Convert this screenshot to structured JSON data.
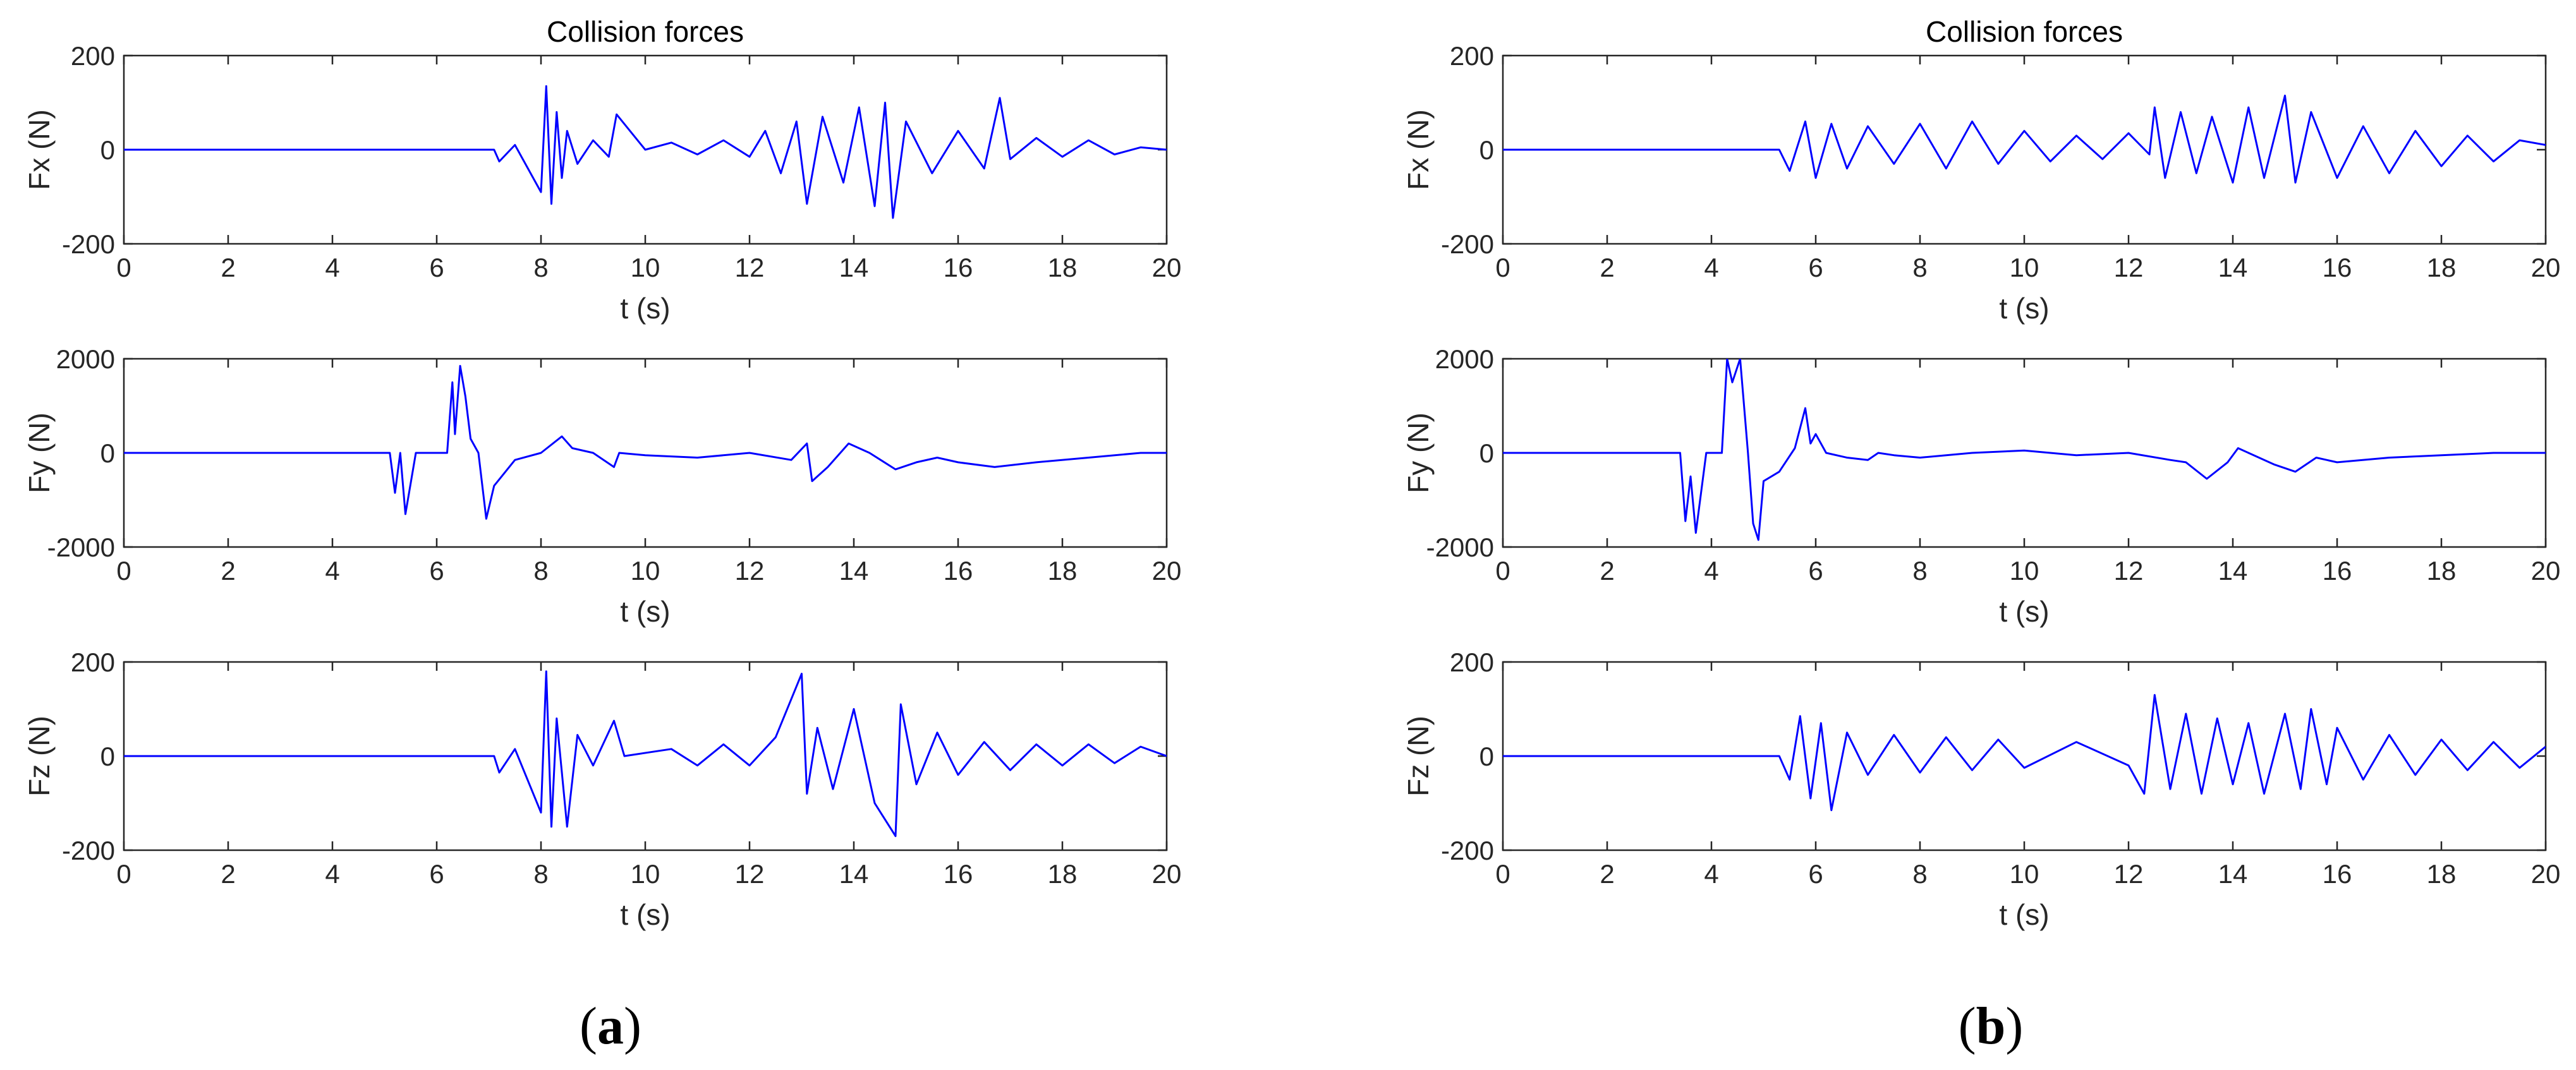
{
  "figure": {
    "panels": [
      {
        "caption_open": "(",
        "caption_letter": "a",
        "caption_close": ")",
        "title": "Collision forces"
      },
      {
        "caption_open": "(",
        "caption_letter": "b",
        "caption_close": ")",
        "title": "Collision forces"
      }
    ]
  },
  "line_color": "#0000ff",
  "chart_data": [
    {
      "type": "line",
      "panel": "a",
      "title": "Collision forces",
      "xlabel": "t (s)",
      "ylabel": "Fx (N)",
      "xlim": [
        0,
        20
      ],
      "ylim": [
        -200,
        200
      ],
      "xticks": [
        0,
        2,
        4,
        6,
        8,
        10,
        12,
        14,
        16,
        18,
        20
      ],
      "yticks": [
        -200,
        0,
        200
      ],
      "grid": false,
      "series": [
        {
          "x": [
            0,
            7.1,
            7.2,
            7.5,
            8.0,
            8.1,
            8.2,
            8.3,
            8.4,
            8.5,
            8.7,
            9.0,
            9.3,
            9.45,
            10.0,
            10.5,
            11.0,
            11.5,
            12.0,
            12.3,
            12.6,
            12.9,
            13.1,
            13.4,
            13.8,
            14.1,
            14.4,
            14.6,
            14.75,
            15.0,
            15.5,
            16.0,
            16.5,
            16.8,
            17.0,
            17.5,
            18.0,
            18.5,
            19.0,
            19.5,
            20.0
          ],
          "y": [
            0,
            0,
            -25,
            10,
            -90,
            135,
            -115,
            80,
            -60,
            40,
            -30,
            20,
            -15,
            75,
            0,
            15,
            -10,
            20,
            -15,
            40,
            -50,
            60,
            -115,
            70,
            -70,
            90,
            -120,
            100,
            -145,
            60,
            -50,
            40,
            -40,
            110,
            -20,
            25,
            -15,
            20,
            -10,
            5,
            0
          ]
        }
      ]
    },
    {
      "type": "line",
      "panel": "a",
      "xlabel": "t (s)",
      "ylabel": "Fy (N)",
      "xlim": [
        0,
        20
      ],
      "ylim": [
        -2000,
        2000
      ],
      "xticks": [
        0,
        2,
        4,
        6,
        8,
        10,
        12,
        14,
        16,
        18,
        20
      ],
      "yticks": [
        -2000,
        0,
        2000
      ],
      "grid": false,
      "series": [
        {
          "x": [
            0,
            5.1,
            5.2,
            5.3,
            5.4,
            5.6,
            6.2,
            6.3,
            6.35,
            6.45,
            6.55,
            6.65,
            6.8,
            6.95,
            7.1,
            7.5,
            8.0,
            8.4,
            8.6,
            9.0,
            9.4,
            9.5,
            10.0,
            11.0,
            12.0,
            12.8,
            13.1,
            13.2,
            13.5,
            13.9,
            14.3,
            14.8,
            15.2,
            15.6,
            16.0,
            16.7,
            17.5,
            18.5,
            19.5,
            20.0
          ],
          "y": [
            0,
            0,
            -850,
            0,
            -1300,
            0,
            0,
            1500,
            400,
            1850,
            1200,
            300,
            0,
            -1400,
            -700,
            -150,
            0,
            350,
            100,
            0,
            -300,
            0,
            -50,
            -100,
            0,
            -150,
            200,
            -600,
            -300,
            200,
            0,
            -350,
            -200,
            -100,
            -200,
            -300,
            -200,
            -100,
            0,
            0
          ]
        }
      ]
    },
    {
      "type": "line",
      "panel": "a",
      "xlabel": "t (s)",
      "ylabel": "Fz (N)",
      "xlim": [
        0,
        20
      ],
      "ylim": [
        -200,
        200
      ],
      "xticks": [
        0,
        2,
        4,
        6,
        8,
        10,
        12,
        14,
        16,
        18,
        20
      ],
      "yticks": [
        -200,
        0,
        200
      ],
      "grid": false,
      "series": [
        {
          "x": [
            0,
            7.1,
            7.2,
            7.5,
            8.0,
            8.1,
            8.2,
            8.3,
            8.5,
            8.7,
            9.0,
            9.4,
            9.6,
            10.5,
            11.0,
            11.5,
            12.0,
            12.5,
            13.0,
            13.1,
            13.3,
            13.6,
            14.0,
            14.4,
            14.8,
            14.9,
            15.2,
            15.6,
            16.0,
            16.5,
            17.0,
            17.5,
            18.0,
            18.5,
            19.0,
            19.5,
            20.0
          ],
          "y": [
            0,
            0,
            -35,
            15,
            -120,
            180,
            -150,
            80,
            -150,
            45,
            -20,
            75,
            0,
            15,
            -20,
            25,
            -20,
            40,
            175,
            -80,
            60,
            -70,
            100,
            -100,
            -170,
            110,
            -60,
            50,
            -40,
            30,
            -30,
            25,
            -20,
            25,
            -15,
            20,
            0
          ]
        }
      ]
    },
    {
      "type": "line",
      "panel": "b",
      "title": "Collision forces",
      "xlabel": "t (s)",
      "ylabel": "Fx (N)",
      "xlim": [
        0,
        20
      ],
      "ylim": [
        -200,
        200
      ],
      "xticks": [
        0,
        2,
        4,
        6,
        8,
        10,
        12,
        14,
        16,
        18,
        20
      ],
      "yticks": [
        -200,
        0,
        200
      ],
      "grid": false,
      "series": [
        {
          "x": [
            0,
            5.3,
            5.5,
            5.8,
            6.0,
            6.3,
            6.6,
            7.0,
            7.5,
            8.0,
            8.5,
            9.0,
            9.5,
            10.0,
            10.5,
            11.0,
            11.5,
            12.0,
            12.4,
            12.5,
            12.7,
            13.0,
            13.3,
            13.6,
            14.0,
            14.3,
            14.6,
            15.0,
            15.2,
            15.5,
            16.0,
            16.5,
            17.0,
            17.5,
            18.0,
            18.5,
            19.0,
            19.5,
            20.0
          ],
          "y": [
            0,
            0,
            -45,
            60,
            -60,
            55,
            -40,
            50,
            -30,
            55,
            -40,
            60,
            -30,
            40,
            -25,
            30,
            -20,
            35,
            -10,
            90,
            -60,
            80,
            -50,
            70,
            -70,
            90,
            -60,
            115,
            -70,
            80,
            -60,
            50,
            -50,
            40,
            -35,
            30,
            -25,
            20,
            10
          ]
        }
      ]
    },
    {
      "type": "line",
      "panel": "b",
      "xlabel": "t (s)",
      "ylabel": "Fy (N)",
      "xlim": [
        0,
        20
      ],
      "ylim": [
        -2000,
        2000
      ],
      "xticks": [
        0,
        2,
        4,
        6,
        8,
        10,
        12,
        14,
        16,
        18,
        20
      ],
      "yticks": [
        -2000,
        0,
        2000
      ],
      "grid": false,
      "series": [
        {
          "x": [
            0,
            3.4,
            3.5,
            3.6,
            3.7,
            3.9,
            4.2,
            4.3,
            4.4,
            4.55,
            4.7,
            4.8,
            4.9,
            5.0,
            5.3,
            5.6,
            5.8,
            5.9,
            6.0,
            6.2,
            6.6,
            7.0,
            7.2,
            7.5,
            8.0,
            9.0,
            10.0,
            11.0,
            12.0,
            12.8,
            13.1,
            13.5,
            13.9,
            14.1,
            14.3,
            14.8,
            15.2,
            15.6,
            16.0,
            17.0,
            18.0,
            19.0,
            20.0
          ],
          "y": [
            0,
            0,
            -1450,
            -500,
            -1700,
            0,
            0,
            2000,
            1500,
            2000,
            0,
            -1500,
            -1850,
            -600,
            -400,
            100,
            950,
            200,
            400,
            0,
            -100,
            -150,
            0,
            -50,
            -100,
            0,
            50,
            -50,
            0,
            -150,
            -200,
            -550,
            -200,
            100,
            0,
            -250,
            -400,
            -100,
            -200,
            -100,
            -50,
            0,
            0
          ]
        }
      ]
    },
    {
      "type": "line",
      "panel": "b",
      "xlabel": "t (s)",
      "ylabel": "Fz (N)",
      "xlim": [
        0,
        20
      ],
      "ylim": [
        -200,
        200
      ],
      "xticks": [
        0,
        2,
        4,
        6,
        8,
        10,
        12,
        14,
        16,
        18,
        20
      ],
      "yticks": [
        -200,
        0,
        200
      ],
      "grid": false,
      "series": [
        {
          "x": [
            0,
            5.3,
            5.5,
            5.7,
            5.9,
            6.1,
            6.3,
            6.6,
            7.0,
            7.5,
            8.0,
            8.5,
            9.0,
            9.5,
            10.0,
            11.0,
            12.0,
            12.3,
            12.5,
            12.8,
            13.1,
            13.4,
            13.7,
            14.0,
            14.3,
            14.6,
            15.0,
            15.3,
            15.5,
            15.8,
            16.0,
            16.5,
            17.0,
            17.5,
            18.0,
            18.5,
            19.0,
            19.5,
            20.0
          ],
          "y": [
            0,
            0,
            -50,
            85,
            -90,
            70,
            -115,
            50,
            -40,
            45,
            -35,
            40,
            -30,
            35,
            -25,
            30,
            -20,
            -80,
            130,
            -70,
            90,
            -80,
            80,
            -60,
            70,
            -80,
            90,
            -70,
            100,
            -60,
            60,
            -50,
            45,
            -40,
            35,
            -30,
            30,
            -25,
            20
          ]
        }
      ]
    }
  ]
}
